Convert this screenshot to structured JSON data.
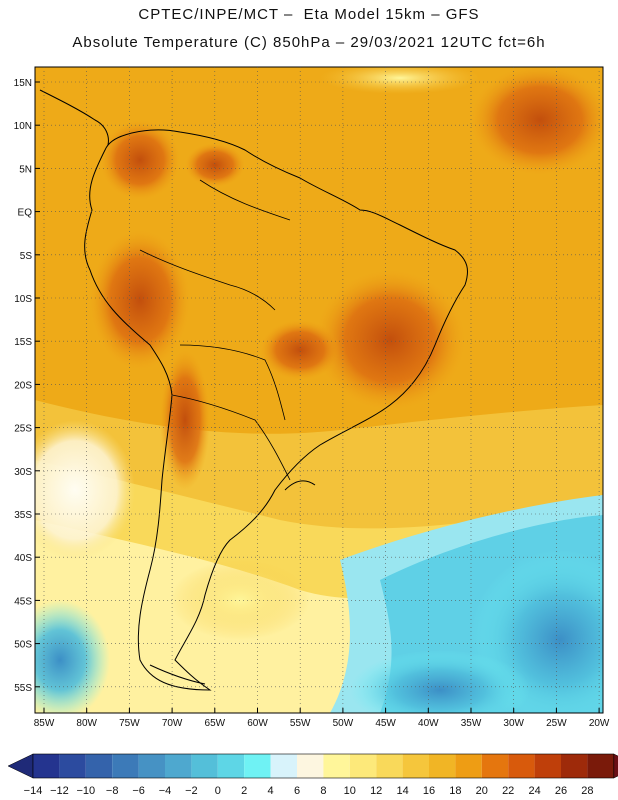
{
  "title_line1": "CPTEC/INPE/MCT –  Eta Model 15km – GFS",
  "title_line2": "Absolute Temperature (C) 850hPa – 29/03/2021 12UTC fct=6h",
  "lat_labels": [
    "15N",
    "10N",
    "5N",
    "EQ",
    "5S",
    "10S",
    "15S",
    "20S",
    "25S",
    "30S",
    "35S",
    "40S",
    "45S",
    "50S",
    "55S"
  ],
  "lon_labels": [
    "85W",
    "80W",
    "75W",
    "70W",
    "65W",
    "60W",
    "55W",
    "50W",
    "45W",
    "40W",
    "35W",
    "30W",
    "25W",
    "20W"
  ],
  "colorbar": {
    "labels": [
      "-14",
      "-12",
      "-10",
      "-8",
      "-6",
      "-4",
      "-2",
      "0",
      "2",
      "4",
      "6",
      "8",
      "10",
      "12",
      "14",
      "16",
      "18",
      "20",
      "22",
      "24",
      "26",
      "28"
    ],
    "colors": [
      "#24348f",
      "#2c4b9f",
      "#3463ab",
      "#3c7ab8",
      "#4692c4",
      "#4ea8cf",
      "#54bfd9",
      "#5ed6e6",
      "#6ff2f4",
      "#d8f3fb",
      "#fdf6e0",
      "#fff69a",
      "#fde97a",
      "#f9d95a",
      "#f5c63c",
      "#f1b525",
      "#ee9d14",
      "#e5760e",
      "#d85a0c",
      "#bf3f0a",
      "#9e2a0a",
      "#7a1a0a"
    ],
    "left_arrow_color": "#1f2a78",
    "right_arrow_color": "#6a0f15"
  },
  "colors": {
    "map_base": "#eeaa18",
    "warm_core": "#c8500e",
    "cold_ocean": "#50c8e2",
    "coastline": "#000000"
  }
}
